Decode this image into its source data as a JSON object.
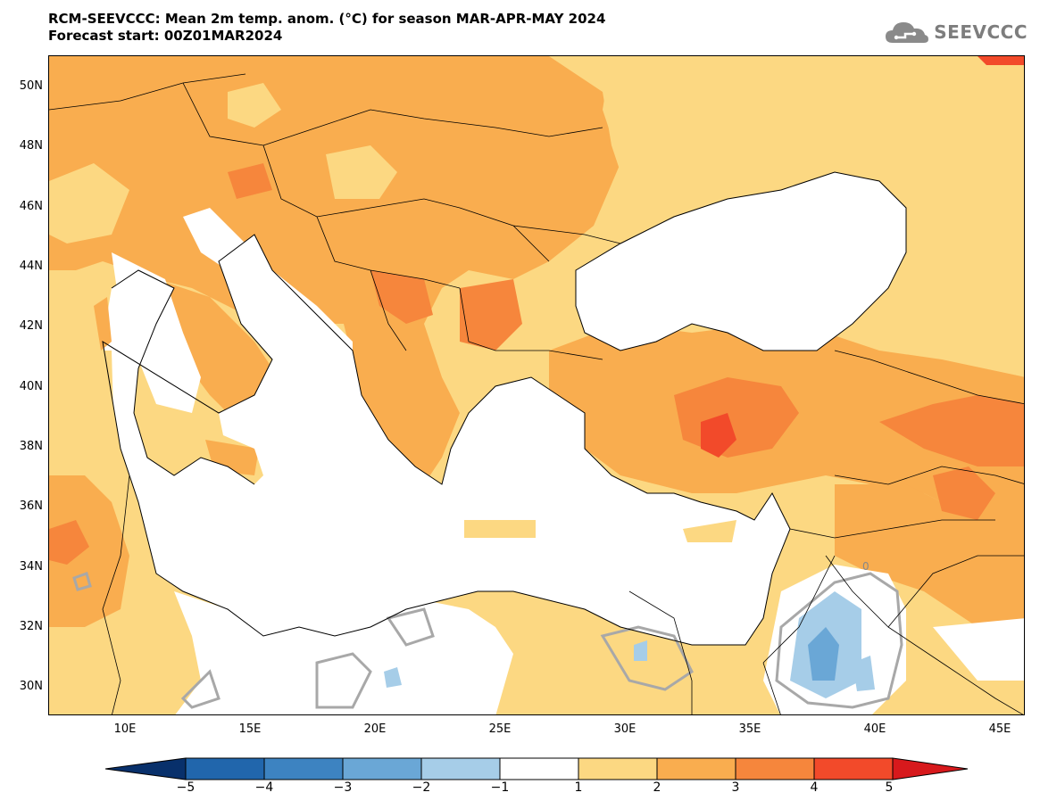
{
  "header": {
    "title_line1": "RCM-SEEVCCC: Mean 2m temp. anom. (°C) for season MAR-APR-MAY 2024",
    "title_line2": "Forecast start: 00Z01MAR2024"
  },
  "logo": {
    "text": "SEEVCCC",
    "icon": "cloud-icon",
    "color": "#7d7d7d"
  },
  "map": {
    "lon_range": [
      7,
      46
    ],
    "lat_range": [
      29,
      51
    ],
    "lat_ticks": [
      "50N",
      "48N",
      "46N",
      "44N",
      "42N",
      "40N",
      "38N",
      "36N",
      "34N",
      "32N",
      "30N"
    ],
    "lon_ticks": [
      "10E",
      "15E",
      "20E",
      "25E",
      "30E",
      "35E",
      "40E",
      "45E"
    ],
    "contour_label": "0"
  },
  "colorbar": {
    "labels": [
      "−5",
      "−4",
      "−3",
      "−2",
      "−1",
      "1",
      "2",
      "3",
      "4",
      "5"
    ],
    "colors": [
      "#2166ac",
      "#3d83c1",
      "#6aa7d6",
      "#a6cde8",
      "#ffffff",
      "#fcd882",
      "#f9ad4f",
      "#f6863c",
      "#f24a2a"
    ],
    "end_low": "#08306b",
    "end_high": "#d7191c"
  }
}
